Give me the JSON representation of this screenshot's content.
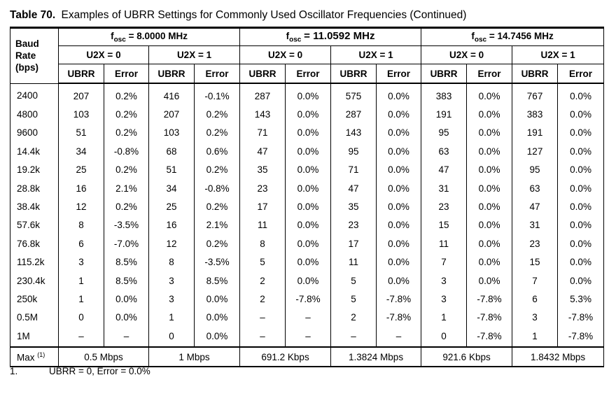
{
  "caption": {
    "number": "Table 70.",
    "title": "Examples of UBRR Settings for Commonly Used Oscillator Frequencies (Continued)"
  },
  "header": {
    "baud_label_lines": [
      "Baud",
      "Rate",
      "(bps)"
    ],
    "fosc_symbol": "f",
    "fosc_subscript": "osc",
    "frequencies": [
      "= 8.0000 MHz",
      "= 11.0592 MHz",
      "= 14.7456 MHz"
    ],
    "u2x_labels": [
      "U2X = 0",
      "U2X = 1",
      "U2X = 0",
      "U2X = 1",
      "U2X = 0",
      "U2X = 1"
    ],
    "col_ubrr": "UBRR",
    "col_error": "Error"
  },
  "rows": [
    {
      "rate": "2400",
      "cells": [
        "207",
        "0.2%",
        "416",
        "-0.1%",
        "287",
        "0.0%",
        "575",
        "0.0%",
        "383",
        "0.0%",
        "767",
        "0.0%"
      ]
    },
    {
      "rate": "4800",
      "cells": [
        "103",
        "0.2%",
        "207",
        "0.2%",
        "143",
        "0.0%",
        "287",
        "0.0%",
        "191",
        "0.0%",
        "383",
        "0.0%"
      ]
    },
    {
      "rate": "9600",
      "cells": [
        "51",
        "0.2%",
        "103",
        "0.2%",
        "71",
        "0.0%",
        "143",
        "0.0%",
        "95",
        "0.0%",
        "191",
        "0.0%"
      ]
    },
    {
      "rate": "14.4k",
      "cells": [
        "34",
        "-0.8%",
        "68",
        "0.6%",
        "47",
        "0.0%",
        "95",
        "0.0%",
        "63",
        "0.0%",
        "127",
        "0.0%"
      ]
    },
    {
      "rate": "19.2k",
      "cells": [
        "25",
        "0.2%",
        "51",
        "0.2%",
        "35",
        "0.0%",
        "71",
        "0.0%",
        "47",
        "0.0%",
        "95",
        "0.0%"
      ]
    },
    {
      "rate": "28.8k",
      "cells": [
        "16",
        "2.1%",
        "34",
        "-0.8%",
        "23",
        "0.0%",
        "47",
        "0.0%",
        "31",
        "0.0%",
        "63",
        "0.0%"
      ]
    },
    {
      "rate": "38.4k",
      "cells": [
        "12",
        "0.2%",
        "25",
        "0.2%",
        "17",
        "0.0%",
        "35",
        "0.0%",
        "23",
        "0.0%",
        "47",
        "0.0%"
      ]
    },
    {
      "rate": "57.6k",
      "cells": [
        "8",
        "-3.5%",
        "16",
        "2.1%",
        "11",
        "0.0%",
        "23",
        "0.0%",
        "15",
        "0.0%",
        "31",
        "0.0%"
      ]
    },
    {
      "rate": "76.8k",
      "cells": [
        "6",
        "-7.0%",
        "12",
        "0.2%",
        "8",
        "0.0%",
        "17",
        "0.0%",
        "11",
        "0.0%",
        "23",
        "0.0%"
      ]
    },
    {
      "rate": "115.2k",
      "cells": [
        "3",
        "8.5%",
        "8",
        "-3.5%",
        "5",
        "0.0%",
        "11",
        "0.0%",
        "7",
        "0.0%",
        "15",
        "0.0%"
      ]
    },
    {
      "rate": "230.4k",
      "cells": [
        "1",
        "8.5%",
        "3",
        "8.5%",
        "2",
        "0.0%",
        "5",
        "0.0%",
        "3",
        "0.0%",
        "7",
        "0.0%"
      ]
    },
    {
      "rate": "250k",
      "cells": [
        "1",
        "0.0%",
        "3",
        "0.0%",
        "2",
        "-7.8%",
        "5",
        "-7.8%",
        "3",
        "-7.8%",
        "6",
        "5.3%"
      ]
    },
    {
      "rate": "0.5M",
      "cells": [
        "0",
        "0.0%",
        "1",
        "0.0%",
        "–",
        "–",
        "2",
        "-7.8%",
        "1",
        "-7.8%",
        "3",
        "-7.8%"
      ]
    },
    {
      "rate": "1M",
      "cells": [
        "–",
        "–",
        "0",
        "0.0%",
        "–",
        "–",
        "–",
        "–",
        "0",
        "-7.8%",
        "1",
        "-7.8%"
      ]
    }
  ],
  "max_row": {
    "label": "Max",
    "footnote_ref": "(1)",
    "values": [
      "0.5 Mbps",
      "1 Mbps",
      "691.2 Kbps",
      "1.3824 Mbps",
      "921.6 Kbps",
      "1.8432 Mbps"
    ]
  },
  "footnote": {
    "number": "1.",
    "text": "UBRR = 0, Error = 0.0%"
  }
}
